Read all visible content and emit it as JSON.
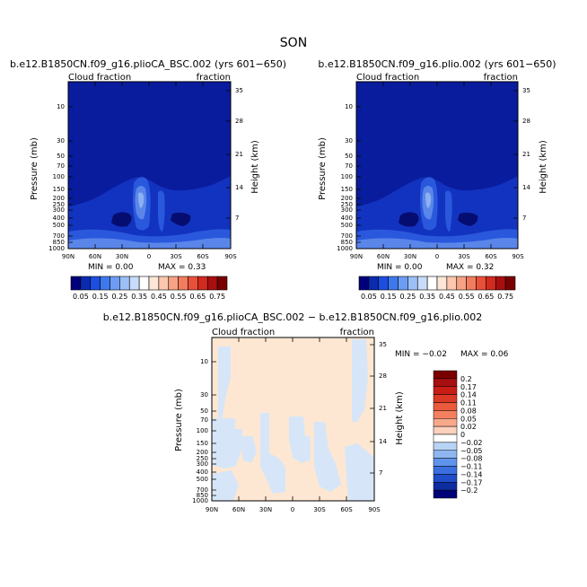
{
  "page_title": "SON",
  "chart_data": [
    {
      "type": "heatmap",
      "title": "b.e12.B1850CN.f09_g16.plioCA_BSC.002 (yrs 601−650)",
      "left_label": "Cloud fraction",
      "right_label": "fraction",
      "ylabel": "Pressure (mb)",
      "y2label": "Height (km)",
      "xticks": [
        "90N",
        "60N",
        "30N",
        "0",
        "30S",
        "60S",
        "90S"
      ],
      "yticks": [
        "10",
        "30",
        "50",
        "70",
        "100",
        "150",
        "200",
        "250",
        "300",
        "400",
        "500",
        "700",
        "850",
        "1000"
      ],
      "y2ticks": [
        "35",
        "28",
        "21",
        "14",
        "7"
      ],
      "min_text": "MIN =    0.00",
      "max_text": "MAX =    0.33",
      "min": 0.0,
      "max": 0.33
    },
    {
      "type": "heatmap",
      "title": "b.e12.B1850CN.f09_g16.plio.002 (yrs 601−650)",
      "left_label": "Cloud fraction",
      "right_label": "fraction",
      "ylabel": "Pressure (mb)",
      "y2label": "Height (km)",
      "xticks": [
        "90N",
        "60N",
        "30N",
        "0",
        "30S",
        "60S",
        "90S"
      ],
      "yticks": [
        "10",
        "30",
        "50",
        "70",
        "100",
        "150",
        "200",
        "250",
        "300",
        "400",
        "500",
        "700",
        "850",
        "1000"
      ],
      "y2ticks": [
        "35",
        "28",
        "21",
        "14",
        "7"
      ],
      "min_text": "MIN =    0.00",
      "max_text": "MAX =    0.32",
      "min": 0.0,
      "max": 0.32
    },
    {
      "type": "heatmap",
      "title": "b.e12.B1850CN.f09_g16.plioCA_BSC.002 − b.e12.B1850CN.f09_g16.plio.002",
      "left_label": "Cloud fraction",
      "right_label": "fraction",
      "ylabel": "Pressure (mb)",
      "y2label": "Height (km)",
      "xticks": [
        "90N",
        "60N",
        "30N",
        "0",
        "30S",
        "60S",
        "90S"
      ],
      "yticks": [
        "10",
        "30",
        "50",
        "70",
        "100",
        "150",
        "200",
        "250",
        "300",
        "400",
        "500",
        "700",
        "850",
        "1000"
      ],
      "y2ticks": [
        "35",
        "28",
        "21",
        "14",
        "7"
      ],
      "min_text": "MIN =   −0.02",
      "max_text": "MAX =    0.06",
      "min": -0.02,
      "max": 0.06
    }
  ],
  "colorbar_top": {
    "labels": [
      "0.05",
      "0.15",
      "0.25",
      "0.35",
      "0.45",
      "0.55",
      "0.65",
      "0.75"
    ],
    "colors": [
      "#00007a",
      "#0a2bb0",
      "#1c4fdf",
      "#3f78ee",
      "#6d9cf4",
      "#9cbff8",
      "#c8dcfa",
      "#ffffff",
      "#fde6d6",
      "#fbc7ae",
      "#f7a283",
      "#f27c5c",
      "#e9503a",
      "#d22a1f",
      "#a80f10",
      "#790000"
    ]
  },
  "colorbar_diff": {
    "labels": [
      "0.2",
      "0.17",
      "0.14",
      "0.11",
      "0.08",
      "0.05",
      "0.02",
      "0",
      "−0.02",
      "−0.05",
      "−0.08",
      "−0.11",
      "−0.14",
      "−0.17",
      "−0.2"
    ],
    "colors": [
      "#7a0000",
      "#a80f10",
      "#c81d15",
      "#dc3826",
      "#ec5a3c",
      "#f4805f",
      "#f9a98a",
      "#fcd1bd",
      "#ffffff",
      "#b8d4f5",
      "#8eb6f1",
      "#5f94ec",
      "#3a6fe0",
      "#1f4dc8",
      "#0d2ea0",
      "#000078"
    ]
  },
  "colors": {
    "deep_blue": "#0a1c9e",
    "blue_2": "#1233bf",
    "blue_3": "#2a58dd",
    "blue_4": "#5a86ea",
    "blue_5": "#8db0f2",
    "diff_peach": "#fde7d3",
    "diff_lightblue": "#d6e6f8"
  }
}
